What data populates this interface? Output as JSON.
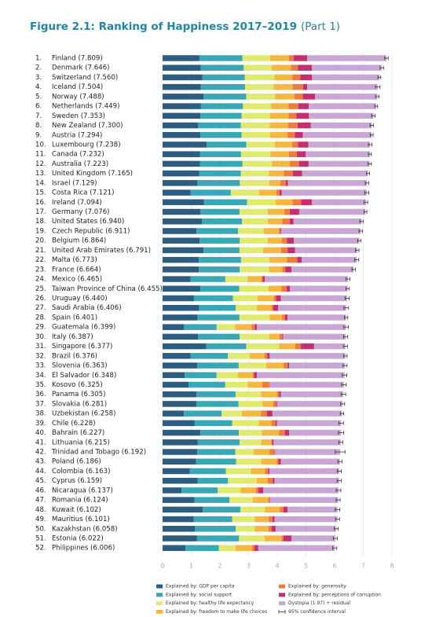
{
  "chart_data": {
    "type": "stacked_barh",
    "title": "Figure 2.1: Ranking of Happiness 2017–2019",
    "subtitle": "(Part 1)",
    "ranks": [
      "1.",
      "2.",
      "3.",
      "4.",
      "5.",
      "6.",
      "7.",
      "8.",
      "9.",
      "10.",
      "11.",
      "12.",
      "13.",
      "14.",
      "15.",
      "16.",
      "17.",
      "18.",
      "19.",
      "20.",
      "21.",
      "22.",
      "23.",
      "24.",
      "25.",
      "26.",
      "27.",
      "28.",
      "29.",
      "30.",
      "31.",
      "32.",
      "33.",
      "34.",
      "35.",
      "36.",
      "37.",
      "38.",
      "39.",
      "40.",
      "41.",
      "42.",
      "43.",
      "44.",
      "45.",
      "46.",
      "47.",
      "48.",
      "49.",
      "50.",
      "51.",
      "52."
    ],
    "categories": [
      "Finland (7.809)",
      "Denmark (7.646)",
      "Switzerland (7.560)",
      "Iceland (7.504)",
      "Norway (7.488)",
      "Netherlands (7.449)",
      "Sweden (7.353)",
      "New Zealand (7.300)",
      "Austria (7.294)",
      "Luxembourg (7.238)",
      "Canada (7.232)",
      "Australia (7.223)",
      "United Kingdom (7.165)",
      "Israel (7.129)",
      "Costa Rica (7.121)",
      "Ireland (7.094)",
      "Germany (7.076)",
      "United States (6.940)",
      "Czech Republic (6.911)",
      "Belgium (6.864)",
      "United Arab Emirates (6.791)",
      "Malta (6.773)",
      "France (6.664)",
      "Mexico (6.465)",
      "Taiwan Province of China (6.455)",
      "Uruguay (6.440)",
      "Saudi Arabia (6.406)",
      "Spain (6.401)",
      "Guatemala (6.399)",
      "Italy (6.387)",
      "Singapore (6.377)",
      "Brazil (6.376)",
      "Slovenia (6.363)",
      "El Salvador (6.348)",
      "Kosovo (6.325)",
      "Panama (6.305)",
      "Slovakia (6.281)",
      "Uzbekistan (6.258)",
      "Chile (6.228)",
      "Bahrain (6.227)",
      "Lithuania (6.215)",
      "Trinidad and Tobago (6.192)",
      "Poland (6.186)",
      "Colombia (6.163)",
      "Cyprus (6.159)",
      "Nicaragua (6.137)",
      "Romania (6.124)",
      "Kuwait (6.102)",
      "Mauritius (6.101)",
      "Kazakhstan (6.058)",
      "Estonia (6.022)",
      "Philippines (6.006)"
    ],
    "totals": [
      7.809,
      7.646,
      7.56,
      7.504,
      7.488,
      7.449,
      7.353,
      7.3,
      7.294,
      7.238,
      7.232,
      7.223,
      7.165,
      7.129,
      7.121,
      7.094,
      7.076,
      6.94,
      6.911,
      6.864,
      6.791,
      6.773,
      6.664,
      6.465,
      6.455,
      6.44,
      6.406,
      6.401,
      6.399,
      6.387,
      6.377,
      6.376,
      6.363,
      6.348,
      6.325,
      6.305,
      6.281,
      6.258,
      6.228,
      6.227,
      6.215,
      6.192,
      6.186,
      6.163,
      6.159,
      6.137,
      6.124,
      6.102,
      6.101,
      6.058,
      6.022,
      6.006
    ],
    "errors": [
      0.06,
      0.06,
      0.05,
      0.08,
      0.06,
      0.05,
      0.06,
      0.06,
      0.05,
      0.06,
      0.05,
      0.06,
      0.05,
      0.06,
      0.07,
      0.06,
      0.05,
      0.06,
      0.06,
      0.06,
      0.06,
      0.07,
      0.06,
      0.07,
      0.06,
      0.07,
      0.08,
      0.06,
      0.08,
      0.07,
      0.07,
      0.06,
      0.07,
      0.08,
      0.08,
      0.08,
      0.07,
      0.06,
      0.08,
      0.09,
      0.07,
      0.17,
      0.07,
      0.07,
      0.07,
      0.08,
      0.07,
      0.08,
      0.07,
      0.07,
      0.07,
      0.07
    ],
    "ci_label": "95% confidence interval",
    "series": [
      {
        "name": "Explained by: GDP per capita",
        "color": "#2c5c80",
        "values": [
          1.285,
          1.327,
          1.391,
          1.327,
          1.424,
          1.339,
          1.322,
          1.243,
          1.317,
          1.537,
          1.301,
          1.31,
          1.273,
          1.216,
          0.981,
          1.448,
          1.314,
          1.374,
          1.182,
          1.292,
          1.431,
          1.267,
          1.266,
          0.977,
          1.319,
          1.094,
          1.271,
          1.217,
          0.751,
          1.241,
          1.52,
          0.978,
          1.205,
          0.769,
          0.907,
          1.184,
          1.182,
          0.745,
          1.12,
          1.318,
          1.219,
          1.211,
          1.17,
          0.951,
          1.219,
          0.665,
          1.113,
          1.405,
          1.084,
          1.134,
          1.203,
          0.798
        ]
      },
      {
        "name": "Explained by: social support",
        "color": "#3aa7b6",
        "values": [
          1.5,
          1.503,
          1.472,
          1.548,
          1.495,
          1.464,
          1.434,
          1.487,
          1.437,
          1.388,
          1.435,
          1.477,
          1.457,
          1.48,
          1.399,
          1.496,
          1.369,
          1.398,
          1.453,
          1.402,
          1.251,
          1.47,
          1.427,
          1.212,
          1.357,
          1.36,
          1.28,
          1.464,
          1.135,
          1.45,
          1.396,
          1.301,
          1.449,
          1.111,
          1.28,
          1.362,
          1.468,
          1.312,
          1.305,
          1.342,
          1.469,
          1.325,
          1.393,
          1.258,
          1.064,
          1.261,
          1.222,
          1.315,
          1.345,
          1.416,
          1.465,
          1.164
        ]
      },
      {
        "name": "Explained by: healthy life expectancy",
        "color": "#e0ea6e",
        "values": [
          0.961,
          0.979,
          1.041,
          1.001,
          1.008,
          0.976,
          0.986,
          1.008,
          1.001,
          0.987,
          1.022,
          1.023,
          0.975,
          1.029,
          0.986,
          0.995,
          0.988,
          0.894,
          0.888,
          0.971,
          0.825,
          0.99,
          1.014,
          0.775,
          1.014,
          0.859,
          0.738,
          1.051,
          0.644,
          1.027,
          1.137,
          0.764,
          0.957,
          0.749,
          0.783,
          0.89,
          0.834,
          0.71,
          0.929,
          0.804,
          0.756,
          0.639,
          0.878,
          0.867,
          1.005,
          0.795,
          0.807,
          0.842,
          0.784,
          0.666,
          0.893,
          0.578
        ]
      },
      {
        "name": "Explained by: freedom to make life choices",
        "color": "#f4b841",
        "values": [
          0.662,
          0.665,
          0.629,
          0.662,
          0.67,
          0.614,
          0.65,
          0.647,
          0.603,
          0.611,
          0.645,
          0.622,
          0.526,
          0.383,
          0.605,
          0.593,
          0.578,
          0.505,
          0.524,
          0.5,
          0.628,
          0.609,
          0.467,
          0.489,
          0.458,
          0.572,
          0.507,
          0.435,
          0.576,
          0.358,
          0.575,
          0.515,
          0.606,
          0.52,
          0.502,
          0.555,
          0.373,
          0.663,
          0.441,
          0.598,
          0.354,
          0.556,
          0.548,
          0.496,
          0.382,
          0.535,
          0.539,
          0.536,
          0.489,
          0.48,
          0.585,
          0.581
        ]
      },
      {
        "name": "Explained by: generosity",
        "color": "#ee7c3e",
        "values": [
          0.16,
          0.243,
          0.269,
          0.362,
          0.288,
          0.337,
          0.272,
          0.326,
          0.256,
          0.196,
          0.282,
          0.325,
          0.316,
          0.188,
          0.107,
          0.296,
          0.188,
          0.263,
          0.065,
          0.17,
          0.225,
          0.356,
          0.105,
          0.04,
          0.175,
          0.069,
          0.061,
          0.106,
          0.108,
          0.098,
          0.196,
          0.09,
          0.144,
          0.04,
          0.263,
          0.07,
          0.096,
          0.206,
          0.14,
          0.204,
          0.02,
          0.172,
          0.052,
          0.11,
          0.17,
          0.087,
          0.066,
          0.121,
          0.129,
          0.103,
          0.073,
          0.084
        ]
      },
      {
        "name": "Explained by: perceptions of corruption",
        "color": "#c4306f",
        "values": [
          0.478,
          0.495,
          0.408,
          0.145,
          0.434,
          0.369,
          0.442,
          0.461,
          0.281,
          0.368,
          0.309,
          0.336,
          0.321,
          0.08,
          0.08,
          0.378,
          0.328,
          0.13,
          0.029,
          0.248,
          0.256,
          0.163,
          0.215,
          0.075,
          0.116,
          0.175,
          0.173,
          0.087,
          0.077,
          0.03,
          0.461,
          0.088,
          0.058,
          0.106,
          0.007,
          0.066,
          0.033,
          0.196,
          0.052,
          0.15,
          0.054,
          0.013,
          0.087,
          0.045,
          0.063,
          0.171,
          0.013,
          0.136,
          0.077,
          0.145,
          0.28,
          0.133
        ]
      },
      {
        "name": "Dystopia (1.97) + residual",
        "color": "#c9a7d5",
        "values": [
          2.763,
          2.434,
          2.35,
          2.459,
          2.169,
          2.35,
          2.247,
          2.128,
          2.399,
          2.151,
          2.238,
          2.13,
          2.297,
          2.753,
          2.963,
          1.888,
          2.311,
          2.376,
          2.77,
          2.281,
          2.175,
          1.918,
          2.17,
          2.897,
          2.016,
          2.311,
          2.376,
          2.041,
          3.108,
          2.183,
          1.092,
          2.64,
          1.944,
          3.053,
          2.583,
          2.178,
          2.295,
          2.426,
          2.241,
          1.811,
          2.343,
          2.276,
          2.058,
          2.436,
          2.256,
          2.623,
          2.364,
          1.747,
          2.193,
          2.114,
          1.523,
          2.668
        ]
      }
    ],
    "xlim": [
      0,
      8
    ],
    "xticks": [
      0,
      1,
      2,
      3,
      4,
      5,
      6,
      7,
      8
    ],
    "grid": true
  }
}
